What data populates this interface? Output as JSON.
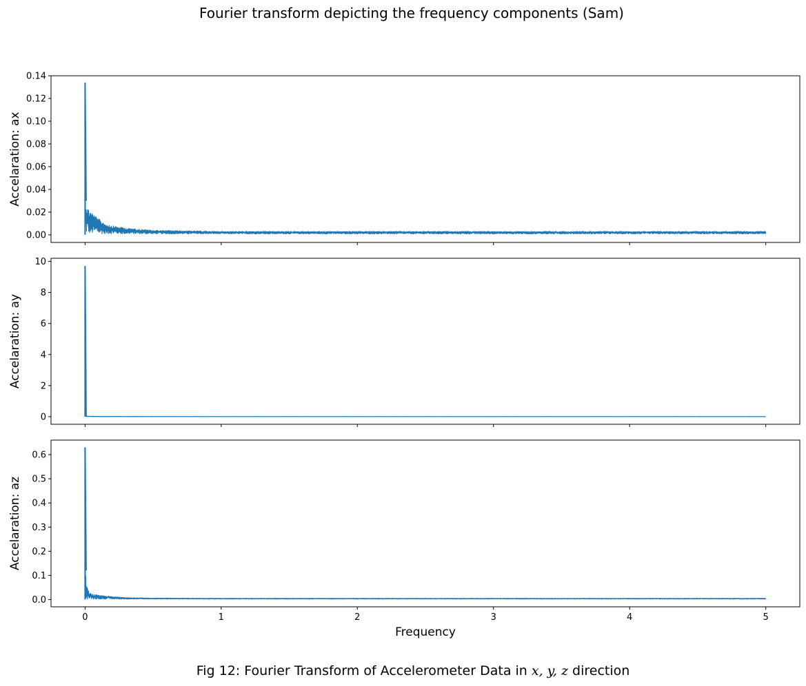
{
  "figure": {
    "suptitle": "Fourier transform depicting the frequency components (Sam)",
    "caption_prefix": "Fig 12: Fourier Transform of Accelerometer Data in ",
    "caption_math": "x, y, z",
    "caption_suffix": " direction",
    "line_color": "#1f77b4"
  },
  "chart_data": [
    {
      "type": "line",
      "title": "",
      "xlabel": "",
      "ylabel": "Accelaration: ax",
      "xlim": [
        -0.25,
        5.25
      ],
      "ylim": [
        -0.0067,
        0.14
      ],
      "x_ticks": [
        0,
        1,
        2,
        3,
        4,
        5
      ],
      "y_ticks": [
        0.0,
        0.02,
        0.04,
        0.06,
        0.08,
        0.1,
        0.12,
        0.14
      ],
      "y_tick_labels": [
        "0.00",
        "0.02",
        "0.04",
        "0.06",
        "0.08",
        "0.10",
        "0.12",
        "0.14"
      ],
      "show_x_tick_labels": false,
      "series": [
        {
          "x": [
            0,
            0.005,
            0.01,
            0.02,
            0.05,
            0.1,
            0.15,
            0.2,
            0.25,
            0.3,
            0.5,
            1,
            2,
            3,
            4,
            5
          ],
          "y": [
            0.134,
            0.03,
            0.028,
            0.024,
            0.02,
            0.014,
            0.01,
            0.008,
            0.007,
            0.006,
            0.004,
            0.003,
            0.003,
            0.003,
            0.003,
            0.003
          ],
          "noise_floor": 0.0008,
          "noise_band": 0.0025
        }
      ]
    },
    {
      "type": "line",
      "title": "",
      "xlabel": "",
      "ylabel": "Accelaration: ay",
      "xlim": [
        -0.25,
        5.25
      ],
      "ylim": [
        -0.49,
        10.2
      ],
      "x_ticks": [
        0,
        1,
        2,
        3,
        4,
        5
      ],
      "y_ticks": [
        0,
        2,
        4,
        6,
        8,
        10
      ],
      "y_tick_labels": [
        "0",
        "2",
        "4",
        "6",
        "8",
        "10"
      ],
      "show_x_tick_labels": false,
      "series": [
        {
          "x": [
            0,
            0.005,
            0.02,
            0.1,
            1,
            2,
            3,
            4,
            5
          ],
          "y": [
            9.7,
            0.06,
            0.03,
            0.02,
            0.01,
            0.01,
            0.01,
            0.01,
            0.01
          ],
          "noise_floor": 0.0,
          "noise_band": 0.02
        }
      ]
    },
    {
      "type": "line",
      "title": "",
      "xlabel": "Frequency",
      "ylabel": "Accelaration: az",
      "xlim": [
        -0.25,
        5.25
      ],
      "ylim": [
        -0.03,
        0.66
      ],
      "x_ticks": [
        0,
        1,
        2,
        3,
        4,
        5
      ],
      "x_tick_labels": [
        "0",
        "1",
        "2",
        "3",
        "4",
        "5"
      ],
      "y_ticks": [
        0.0,
        0.1,
        0.2,
        0.3,
        0.4,
        0.5,
        0.6
      ],
      "y_tick_labels": [
        "0.0",
        "0.1",
        "0.2",
        "0.3",
        "0.4",
        "0.5",
        "0.6"
      ],
      "show_x_tick_labels": true,
      "series": [
        {
          "x": [
            0,
            0.005,
            0.01,
            0.03,
            0.05,
            0.1,
            0.2,
            0.3,
            0.5,
            1,
            2,
            3,
            4,
            5
          ],
          "y": [
            0.63,
            0.12,
            0.06,
            0.03,
            0.022,
            0.018,
            0.012,
            0.008,
            0.006,
            0.005,
            0.005,
            0.005,
            0.005,
            0.005
          ],
          "noise_floor": 0.002,
          "noise_band": 0.004
        }
      ]
    }
  ]
}
